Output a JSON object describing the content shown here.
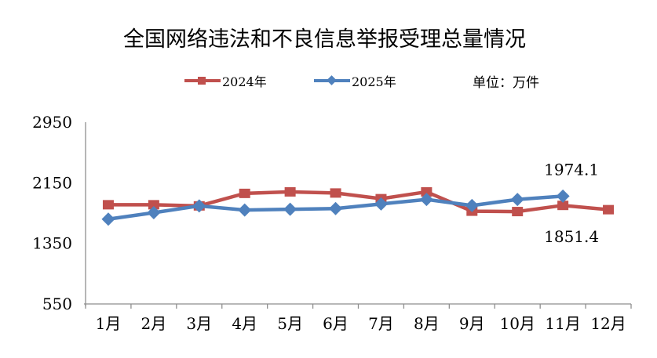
{
  "title": "全国网络违法和不良信息举报受理总量情况",
  "legend": {
    "unit_label": "单位：万件"
  },
  "colors": {
    "series_2024": "#C0504D",
    "series_2025": "#4F81BD",
    "axis": "#8E8E8E",
    "text": "#000000",
    "background": "#FFFFFF"
  },
  "chart_data": {
    "type": "line",
    "title": "全国网络违法和不良信息举报受理总量情况",
    "unit": "万件",
    "legend_position": "top",
    "grid": false,
    "categories": [
      "1月",
      "2月",
      "3月",
      "4月",
      "5月",
      "6月",
      "7月",
      "8月",
      "9月",
      "10月",
      "11月",
      "12月"
    ],
    "y_axis": {
      "min": 550,
      "max": 2950,
      "ticks": [
        550,
        1350,
        2150,
        2950
      ]
    },
    "series": [
      {
        "name": "2024年",
        "color": "#C0504D",
        "marker": "square",
        "values": [
          1860,
          1860,
          1845,
          2010,
          2030,
          2015,
          1940,
          2030,
          1775,
          1770,
          1851.4,
          1795
        ]
      },
      {
        "name": "2025年",
        "color": "#4F81BD",
        "marker": "diamond",
        "values": [
          1670,
          1755,
          1845,
          1790,
          1800,
          1810,
          1870,
          1930,
          1850,
          1930,
          1974.1
        ]
      }
    ],
    "data_labels": [
      {
        "text": "1974.1",
        "series": "2025年",
        "category": "11月",
        "placement": "above"
      },
      {
        "text": "1851.4",
        "series": "2024年",
        "category": "11月",
        "placement": "below"
      }
    ]
  }
}
